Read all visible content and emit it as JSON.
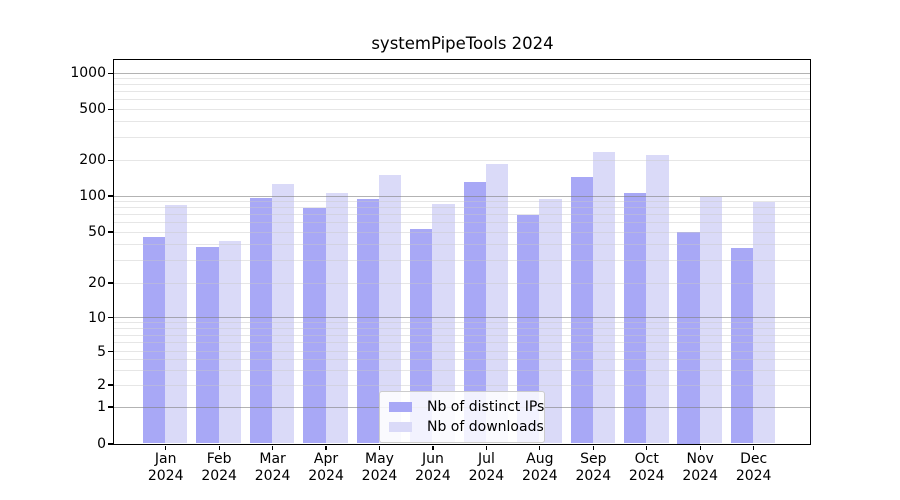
{
  "title": "systemPipeTools 2024",
  "chart_data": {
    "type": "bar",
    "title": "systemPipeTools 2024",
    "categories": [
      "Jan",
      "Feb",
      "Mar",
      "Apr",
      "May",
      "Jun",
      "Jul",
      "Aug",
      "Sep",
      "Oct",
      "Nov",
      "Dec"
    ],
    "x_tick_second_line": "2024",
    "series": [
      {
        "name": "Nb of distinct IPs",
        "color": "#a8a8f6",
        "values": [
          45,
          38,
          95,
          79,
          94,
          52,
          131,
          69,
          144,
          105,
          50,
          37
        ]
      },
      {
        "name": "Nb of downloads",
        "color": "#dadaf8",
        "values": [
          83,
          42,
          126,
          105,
          149,
          85,
          184,
          93,
          232,
          217,
          98,
          88
        ]
      }
    ],
    "y_ticks": [
      0,
      1,
      2,
      5,
      10,
      20,
      50,
      100,
      200,
      500,
      1000
    ],
    "y_axis_scale": "log-like with 0 baseline",
    "ylim": [
      0,
      1286
    ],
    "xlabel": "",
    "ylabel": "",
    "grid": "major gray lines at 1,10,100,1000; faint log minor lines",
    "legend_position": "lower center inside plot"
  },
  "colors": {
    "bar_distinct_ips": "#a8a8f6",
    "bar_downloads": "#dadaf8",
    "major_grid": "#b3b3b3",
    "minor_grid": "#e6e6e6",
    "spine": "#000000",
    "background": "#ffffff"
  }
}
